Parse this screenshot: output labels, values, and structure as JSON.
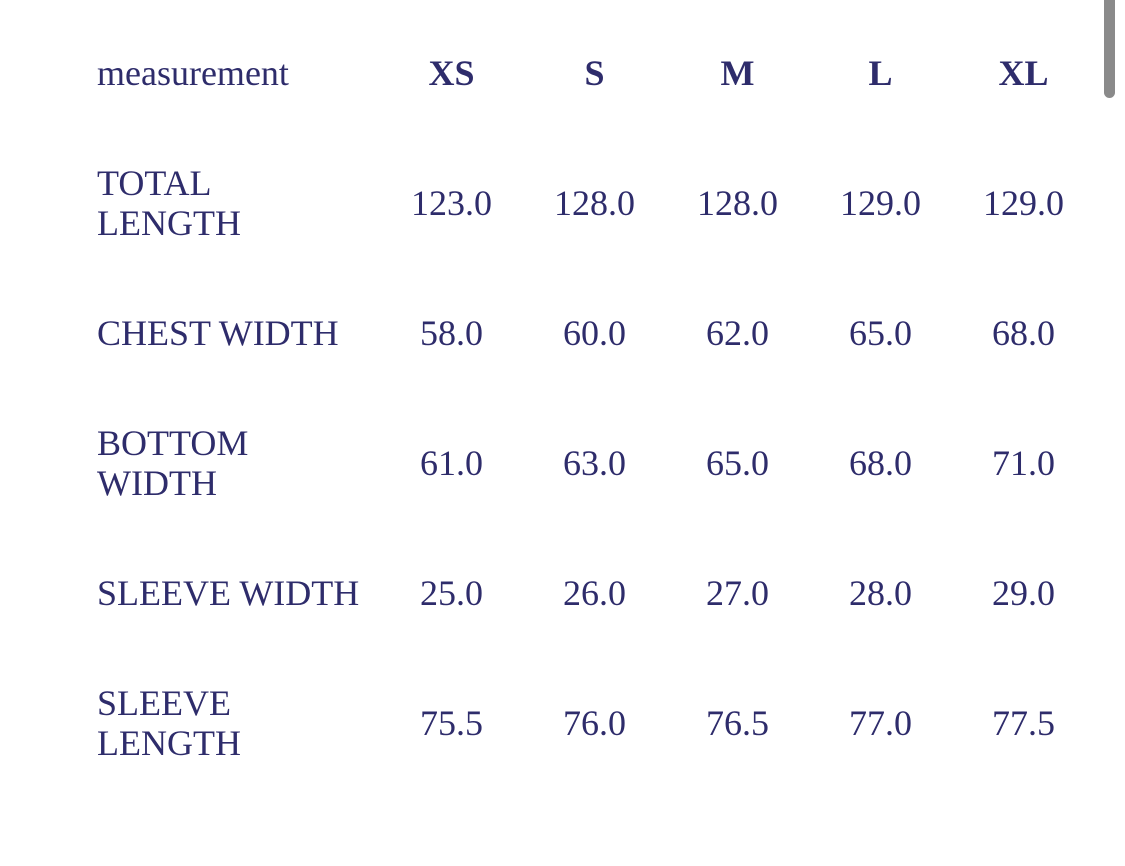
{
  "page": {
    "background_color": "#ffffff",
    "text_color": "#2e2c6b"
  },
  "scrollbar": {
    "thumb_color": "#8a8a8a"
  },
  "size_chart": {
    "columns": [
      "measurement",
      "XS",
      "S",
      "M",
      "L",
      "XL"
    ],
    "rows": [
      {
        "label": "TOTAL\nLENGTH",
        "values": [
          "123.0",
          "128.0",
          "128.0",
          "129.0",
          "129.0"
        ]
      },
      {
        "label": "CHEST WIDTH",
        "values": [
          "58.0",
          "60.0",
          "62.0",
          "65.0",
          "68.0"
        ]
      },
      {
        "label": "BOTTOM\nWIDTH",
        "values": [
          "61.0",
          "63.0",
          "65.0",
          "68.0",
          "71.0"
        ]
      },
      {
        "label": "SLEEVE WIDTH",
        "values": [
          "25.0",
          "26.0",
          "27.0",
          "28.0",
          "29.0"
        ]
      },
      {
        "label": "SLEEVE\nLENGTH",
        "values": [
          "75.5",
          "76.0",
          "76.5",
          "77.0",
          "77.5"
        ]
      }
    ]
  }
}
